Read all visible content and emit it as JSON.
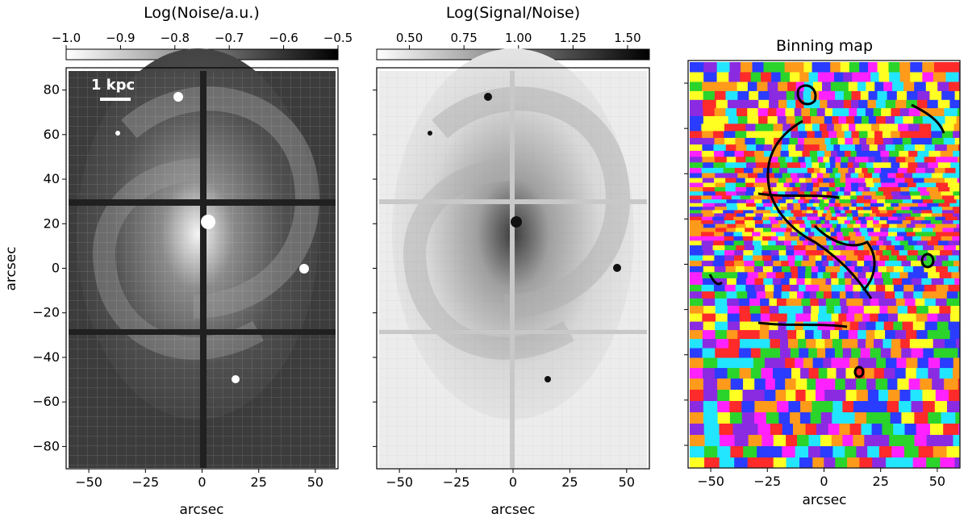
{
  "chart_data": [
    {
      "type": "heatmap",
      "panel": "noise",
      "colorbar_label": "Log(Noise/a.u.)",
      "colorbar_range": [
        -1.0,
        -0.5
      ],
      "colorbar_ticks": [
        "−1.0",
        "−0.9",
        "−0.8",
        "−0.7",
        "−0.6",
        "−0.5"
      ],
      "colormap": "grayscale white-to-black",
      "xlabel": "arcsec",
      "ylabel": "arcsec",
      "xlim": [
        -60,
        60
      ],
      "ylim": [
        -90,
        90
      ],
      "x_ticks": [
        -50,
        -25,
        0,
        25,
        50
      ],
      "y_ticks": [
        80,
        60,
        40,
        20,
        0,
        -20,
        -40,
        -60,
        -80
      ],
      "scale_bar_label": "1 kpc"
    },
    {
      "type": "heatmap",
      "panel": "signal-to-noise",
      "colorbar_label": "Log(Signal/Noise)",
      "colorbar_range": [
        0.35,
        1.6
      ],
      "colorbar_ticks": [
        "0.50",
        "0.75",
        "1.00",
        "1.25",
        "1.50"
      ],
      "colormap": "grayscale white-to-black",
      "xlabel": "arcsec",
      "xlim": [
        -60,
        60
      ],
      "ylim": [
        -90,
        90
      ],
      "x_ticks": [
        -50,
        -25,
        0,
        25,
        50
      ]
    },
    {
      "type": "heatmap",
      "panel": "binning",
      "title": "Binning map",
      "xlabel": "arcsec",
      "xlim": [
        -60,
        60
      ],
      "ylim": [
        -90,
        90
      ],
      "x_ticks": [
        -50,
        -25,
        0,
        25,
        50
      ],
      "bin_colors": [
        "#ff2a2a",
        "#2ad42a",
        "#2a3cff",
        "#ffff22",
        "#ff22ff",
        "#22e5ff",
        "#ff9a1a",
        "#8a2be2",
        "#ffffff",
        "#111111"
      ]
    }
  ],
  "colors": {
    "axis": "#000000"
  }
}
